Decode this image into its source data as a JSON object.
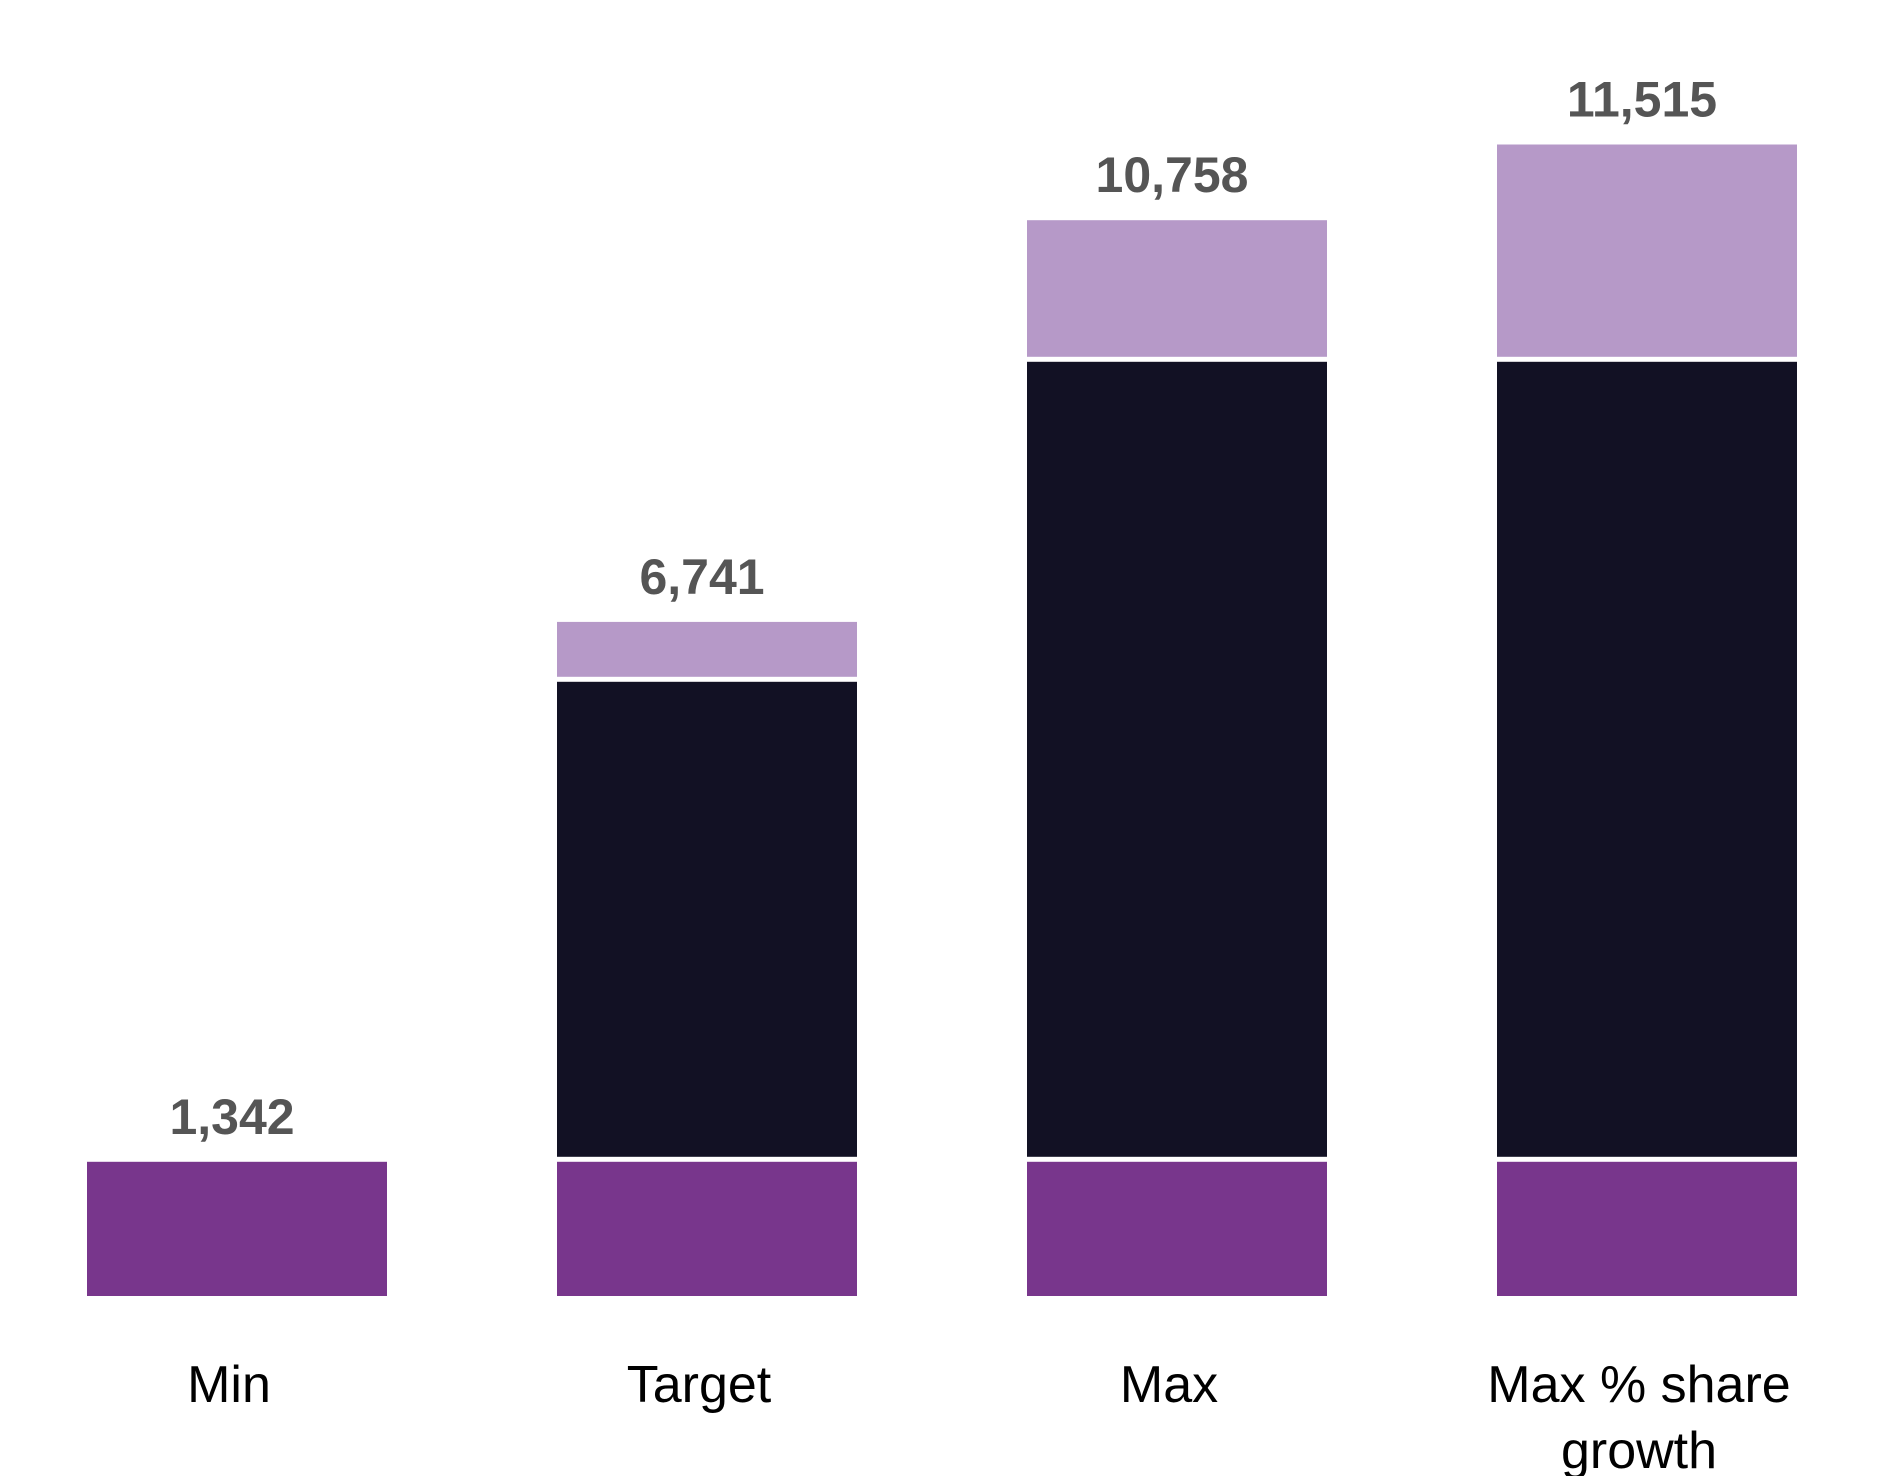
{
  "chart_data": {
    "type": "bar",
    "stacked": true,
    "categories": [
      "Min",
      "Target",
      "Max",
      "Max % share growth"
    ],
    "category_label_lines": [
      [
        "Min"
      ],
      [
        "Target"
      ],
      [
        "Max"
      ],
      [
        "Max % share",
        "growth"
      ]
    ],
    "series": [
      {
        "values": [
          1342,
          1342,
          1342,
          1342
        ],
        "color": "#78368C"
      },
      {
        "values": [
          0,
          4800,
          8000,
          8000
        ],
        "color": "#121124"
      },
      {
        "values": [
          0,
          599,
          1416,
          2173
        ],
        "color": "#B699C8"
      }
    ],
    "totals": [
      1342,
      6741,
      10758,
      11515
    ],
    "total_labels": [
      "1,342",
      "6,741",
      "10,758",
      "11,515"
    ],
    "ylim": [
      0,
      12200
    ],
    "grid": false,
    "legend": "none",
    "title": "",
    "xlabel": "",
    "ylabel": ""
  }
}
